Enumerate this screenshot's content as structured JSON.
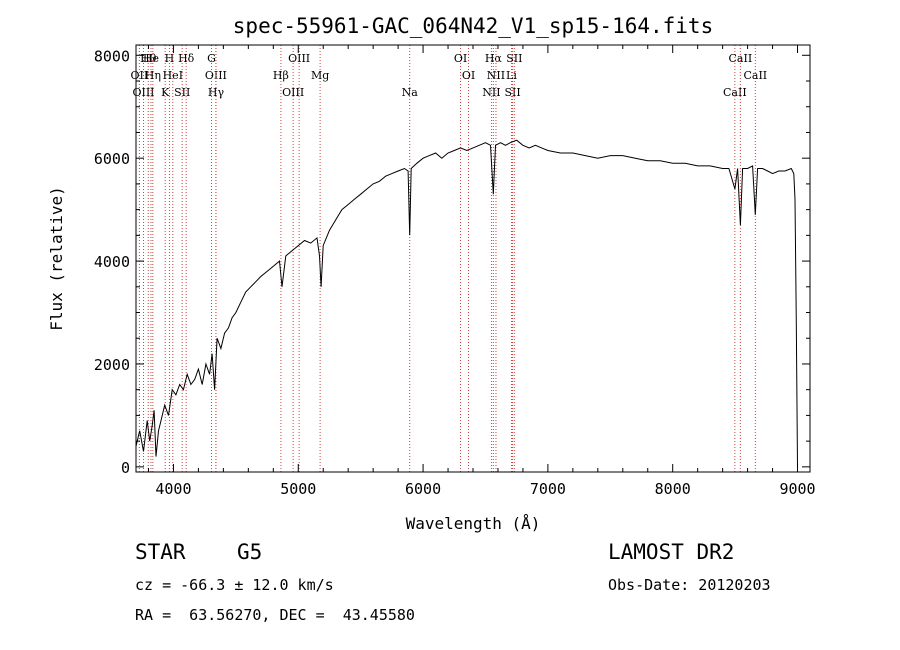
{
  "chart_data": {
    "type": "line",
    "title": "spec-55961-GAC_064N42_V1_sp15-164.fits",
    "xlabel": "Wavelength (Å)",
    "ylabel": "Flux (relative)",
    "xlim": [
      3700,
      9100
    ],
    "ylim": [
      -100,
      8200
    ],
    "xticks": [
      4000,
      5000,
      6000,
      7000,
      8000,
      9000
    ],
    "yticks": [
      0,
      2000,
      4000,
      6000,
      8000
    ],
    "grid": false,
    "series": [
      {
        "x": [
          3700,
          3730,
          3760,
          3790,
          3810,
          3830,
          3845,
          3860,
          3880,
          3900,
          3930,
          3960,
          3990,
          4020,
          4050,
          4080,
          4110,
          4140,
          4170,
          4200,
          4230,
          4260,
          4290,
          4310,
          4330,
          4350,
          4380,
          4410,
          4440,
          4470,
          4500,
          4540,
          4580,
          4620,
          4660,
          4700,
          4750,
          4800,
          4850,
          4870,
          4900,
          4950,
          5000,
          5050,
          5100,
          5150,
          5170,
          5183,
          5200,
          5250,
          5300,
          5350,
          5400,
          5450,
          5500,
          5550,
          5600,
          5650,
          5700,
          5750,
          5800,
          5850,
          5880,
          5893,
          5905,
          5950,
          6000,
          6050,
          6100,
          6150,
          6200,
          6250,
          6300,
          6350,
          6400,
          6450,
          6500,
          6540,
          6563,
          6580,
          6620,
          6660,
          6700,
          6750,
          6800,
          6850,
          6900,
          6950,
          7000,
          7100,
          7200,
          7300,
          7400,
          7500,
          7600,
          7700,
          7800,
          7900,
          8000,
          8100,
          8200,
          8300,
          8400,
          8450,
          8498,
          8520,
          8542,
          8560,
          8600,
          8640,
          8662,
          8680,
          8720,
          8760,
          8800,
          8850,
          8900,
          8950,
          8970,
          8980,
          8990,
          9000
        ],
        "y": [
          400,
          700,
          300,
          900,
          500,
          800,
          1100,
          200,
          700,
          900,
          1200,
          1000,
          1500,
          1400,
          1600,
          1500,
          1800,
          1600,
          1700,
          1900,
          1600,
          2000,
          1800,
          2200,
          1500,
          2500,
          2300,
          2600,
          2700,
          2900,
          3000,
          3200,
          3400,
          3500,
          3600,
          3700,
          3800,
          3900,
          4000,
          3500,
          4100,
          4200,
          4300,
          4400,
          4350,
          4450,
          4100,
          3500,
          4300,
          4600,
          4800,
          5000,
          5100,
          5200,
          5300,
          5400,
          5500,
          5550,
          5650,
          5700,
          5750,
          5800,
          5750,
          4500,
          5800,
          5900,
          6000,
          6050,
          6100,
          6000,
          6100,
          6150,
          6200,
          6150,
          6200,
          6250,
          6300,
          6250,
          5300,
          6250,
          6300,
          6250,
          6300,
          6350,
          6250,
          6200,
          6250,
          6200,
          6150,
          6100,
          6100,
          6050,
          6000,
          6050,
          6050,
          6000,
          5950,
          5950,
          5900,
          5900,
          5850,
          5850,
          5800,
          5800,
          5400,
          5800,
          4700,
          5800,
          5800,
          5850,
          4900,
          5800,
          5800,
          5750,
          5700,
          5750,
          5750,
          5800,
          5700,
          5200,
          2800,
          0
        ]
      }
    ],
    "lines": [
      {
        "label": "Hθ",
        "x": 3798
      },
      {
        "label": "OII",
        "x": 3727
      },
      {
        "label": "OIII",
        "x": 3760
      },
      {
        "label": "He",
        "x": 3820
      },
      {
        "label": "Hη",
        "x": 3835
      },
      {
        "label": "K",
        "x": 3934
      },
      {
        "label": "H",
        "x": 3968
      },
      {
        "label": "HeI",
        "x": 3995
      },
      {
        "label": "SII",
        "x": 4070
      },
      {
        "label": "Hδ",
        "x": 4102
      },
      {
        "label": "OIII",
        "x": 4340
      },
      {
        "label": "Hγ",
        "x": 4341
      },
      {
        "label": "G",
        "x": 4305
      },
      {
        "label": "Hβ",
        "x": 4861
      },
      {
        "label": "OIII",
        "x": 4959
      },
      {
        "label": "OIII",
        "x": 5007
      },
      {
        "label": "Mg",
        "x": 5175
      },
      {
        "label": "Na",
        "x": 5893
      },
      {
        "label": "OI",
        "x": 6300
      },
      {
        "label": "OI",
        "x": 6364
      },
      {
        "label": "NII",
        "x": 6548
      },
      {
        "label": "Hα",
        "x": 6563
      },
      {
        "label": "NII",
        "x": 6584
      },
      {
        "label": "SII",
        "x": 6717
      },
      {
        "label": "SII",
        "x": 6731
      },
      {
        "label": "Li",
        "x": 6708
      },
      {
        "label": "CaII",
        "x": 8498
      },
      {
        "label": "CaII",
        "x": 8542
      },
      {
        "label": "CaII",
        "x": 8662
      }
    ]
  },
  "info": {
    "object_class": "STAR",
    "subclass": "G5",
    "survey": "LAMOST DR2",
    "cz": "cz = -66.3 ± 12.0 km/s",
    "obs_date": "Obs-Date: 20120203",
    "coords": "RA =  63.56270, DEC =  43.45580"
  }
}
